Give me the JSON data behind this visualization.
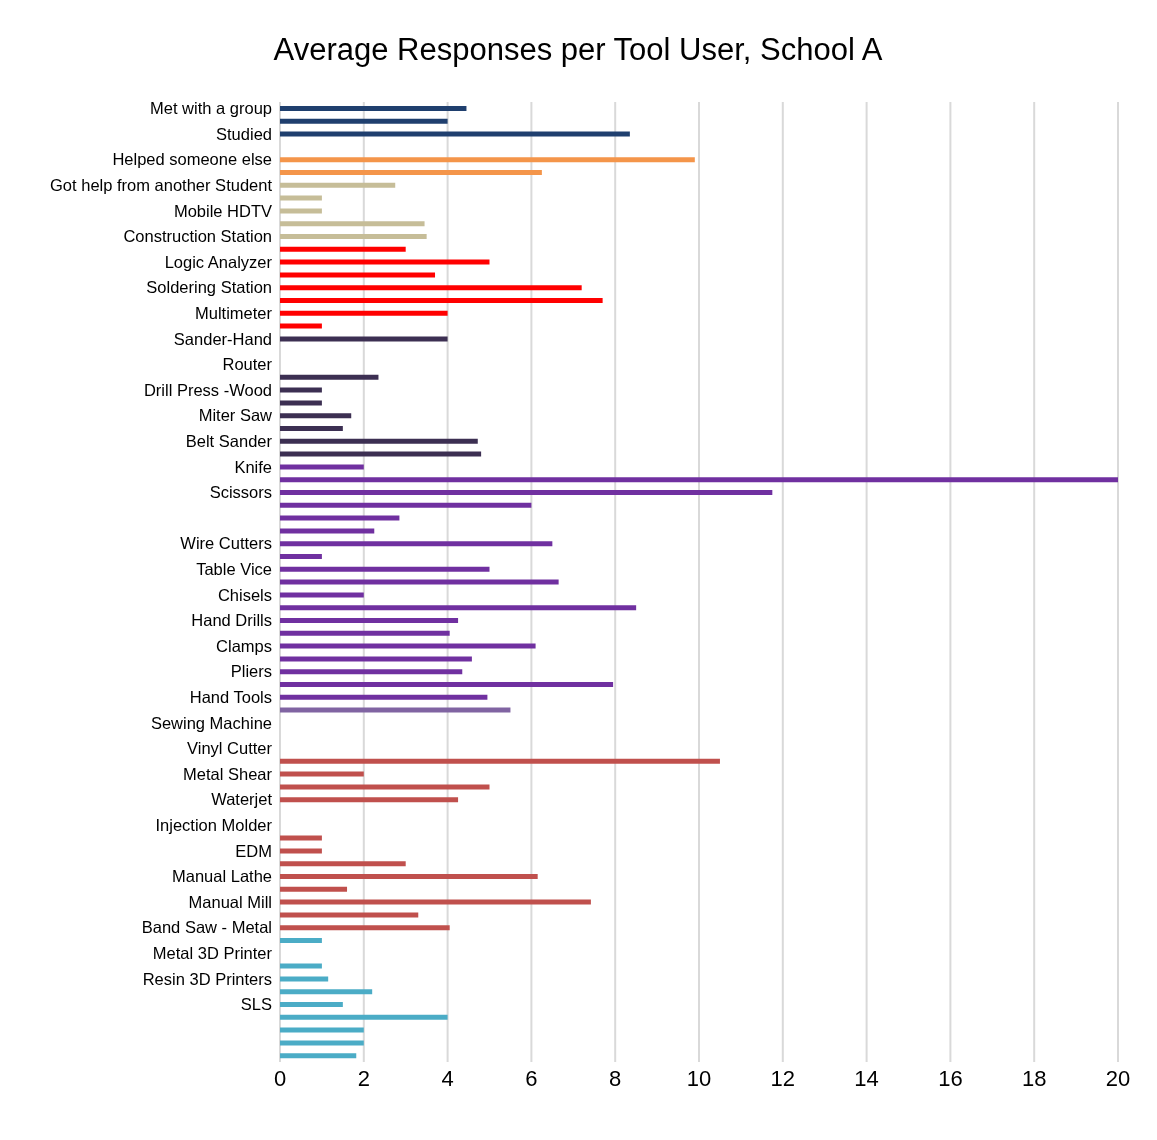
{
  "chart_data": {
    "type": "bar",
    "orientation": "horizontal",
    "title": "Average Responses per Tool User, School A",
    "categories": [
      "Met with a group",
      null,
      "Studied",
      null,
      "Helped someone else",
      null,
      "Got help from another Student",
      null,
      "Mobile HDTV",
      null,
      "Construction Station",
      null,
      "Logic Analyzer",
      null,
      "Soldering Station",
      null,
      "Multimeter",
      null,
      "Sander-Hand",
      null,
      "Router",
      null,
      "Drill Press -Wood",
      null,
      "Miter Saw",
      null,
      "Belt Sander",
      null,
      "Knife",
      null,
      "Scissors",
      null,
      null,
      null,
      "Wire Cutters",
      null,
      "Table Vice",
      null,
      "Chisels",
      null,
      "Hand Drills",
      null,
      "Clamps",
      null,
      "Pliers",
      null,
      "Hand Tools",
      null,
      "Sewing Machine",
      null,
      "Vinyl Cutter",
      null,
      "Metal Shear",
      null,
      "Waterjet",
      null,
      "Injection Molder",
      null,
      "EDM",
      null,
      "Manual Lathe",
      null,
      "Manual Mill",
      null,
      "Band Saw - Metal",
      null,
      "Metal 3D Printer",
      null,
      "Resin 3D Printers",
      null,
      "SLS",
      null,
      null,
      null,
      null
    ],
    "values": [
      4.45,
      4.0,
      8.35,
      null,
      9.9,
      6.25,
      2.75,
      1.0,
      1.0,
      3.45,
      3.5,
      3.0,
      5.0,
      3.7,
      7.2,
      7.7,
      4.0,
      1.0,
      4.0,
      null,
      null,
      2.35,
      1.0,
      1.0,
      1.7,
      1.5,
      4.72,
      4.8,
      2.0,
      20,
      11.75,
      6.0,
      2.85,
      2.25,
      6.5,
      1.0,
      5.0,
      6.65,
      2.0,
      8.5,
      4.25,
      4.05,
      6.1,
      4.58,
      4.35,
      7.95,
      4.95,
      5.5,
      null,
      null,
      null,
      10.5,
      2.0,
      5.0,
      4.25,
      null,
      null,
      1.0,
      1.0,
      3.0,
      6.15,
      1.6,
      7.42,
      3.3,
      4.05,
      1.0,
      null,
      1.0,
      1.15,
      2.2,
      1.5,
      4.0,
      2.0,
      2.0,
      1.82
    ],
    "colors": [
      "#1f3f6e",
      "#1f3f6e",
      "#1f3f6e",
      "#1f3f6e",
      "#f4954a",
      "#f4954a",
      "#c6bd98",
      "#c6bd98",
      "#c6bd98",
      "#c6bd98",
      "#c6bd98",
      "#ff0000",
      "#ff0000",
      "#ff0000",
      "#ff0000",
      "#ff0000",
      "#ff0000",
      "#ff0000",
      "#3c2f52",
      "#3c2f52",
      "#3c2f52",
      "#3c2f52",
      "#3c2f52",
      "#3c2f52",
      "#3c2f52",
      "#3c2f52",
      "#3c2f52",
      "#3c2f52",
      "#7030a0",
      "#7030a0",
      "#7030a0",
      "#7030a0",
      "#7030a0",
      "#7030a0",
      "#7030a0",
      "#7030a0",
      "#7030a0",
      "#7030a0",
      "#7030a0",
      "#7030a0",
      "#7030a0",
      "#7030a0",
      "#7030a0",
      "#7030a0",
      "#7030a0",
      "#7030a0",
      "#7030a0",
      "#8064a2",
      "#8064a2",
      "#8064a2",
      "#8064a2",
      "#c0504d",
      "#c0504d",
      "#c0504d",
      "#c0504d",
      "#c0504d",
      "#c0504d",
      "#c0504d",
      "#c0504d",
      "#c0504d",
      "#c0504d",
      "#c0504d",
      "#c0504d",
      "#c0504d",
      "#c0504d",
      "#4bacc6",
      "#4bacc6",
      "#4bacc6",
      "#4bacc6",
      "#4bacc6",
      "#4bacc6",
      "#4bacc6",
      "#4bacc6",
      "#4bacc6",
      "#4bacc6"
    ],
    "xlim": [
      0,
      20
    ],
    "xticks": [
      0,
      2,
      4,
      6,
      8,
      10,
      12,
      14,
      16,
      18,
      20
    ],
    "grid": "x",
    "legend": false
  }
}
